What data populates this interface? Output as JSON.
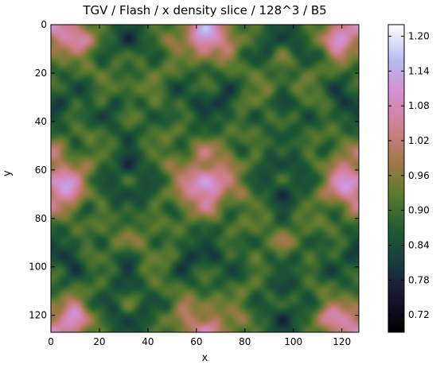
{
  "chart_data": {
    "type": "heatmap",
    "title": "TGV / Flash / x density slice / 128^3 / B5",
    "xlabel": "x",
    "ylabel": "y",
    "xlim": [
      0,
      127
    ],
    "ylim": [
      127,
      0
    ],
    "x_ticks": [
      0,
      20,
      40,
      60,
      80,
      100,
      120
    ],
    "y_ticks": [
      0,
      20,
      40,
      60,
      80,
      100,
      120
    ],
    "grid_size": [
      128,
      128
    ],
    "colormap": "cubehelix",
    "colorbar": {
      "ticks": [
        0.72,
        0.78,
        0.84,
        0.9,
        0.96,
        1.02,
        1.08,
        1.14,
        1.2
      ],
      "tick_labels": [
        "0.72",
        "0.78",
        "0.84",
        "0.90",
        "0.96",
        "1.02",
        "1.08",
        "1.14",
        "1.20"
      ],
      "range": [
        0.69,
        1.22
      ]
    },
    "field_description_features": {
      "low_density_centers": [
        [
          30,
          35
        ],
        [
          97,
          35
        ],
        [
          30,
          101
        ],
        [
          97,
          101
        ]
      ],
      "high_density_centers": [
        [
          64,
          67
        ],
        [
          64,
          5
        ],
        [
          5,
          67
        ],
        [
          122,
          67
        ],
        [
          10,
          5
        ],
        [
          118,
          5
        ],
        [
          10,
          122
        ],
        [
          118,
          122
        ]
      ]
    }
  }
}
